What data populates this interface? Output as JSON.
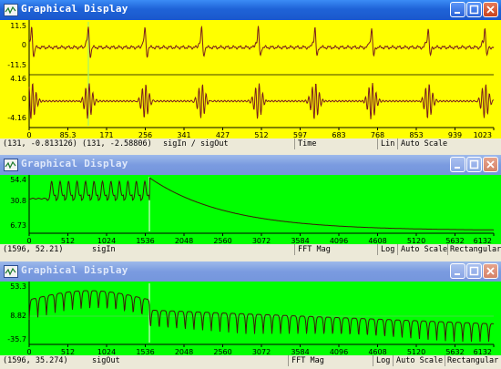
{
  "windows": [
    {
      "title": "Graphical Display",
      "active": true,
      "bg": "#ffff00",
      "trace_color": "#7a1e1e",
      "marker_color": "#a4f26a",
      "panels": [
        {
          "y_ticks": [
            "11.5",
            "0",
            "-11.5"
          ]
        },
        {
          "y_ticks": [
            "4.16",
            "0",
            "-4.16"
          ]
        }
      ],
      "x_ticks": [
        "0",
        "85.3",
        "171",
        "256",
        "341",
        "427",
        "512",
        "597",
        "683",
        "768",
        "853",
        "939",
        "1023"
      ],
      "status": {
        "coord1": "(131, -0.813126)",
        "coord2": "(131, -2.58806)",
        "signal": "sigIn / sigOut",
        "axis": "Time",
        "scale": "Lin",
        "mode": "Auto Scale"
      }
    },
    {
      "title": "Graphical Display",
      "active": false,
      "bg": "#00ff00",
      "trace_color": "#3c1a0a",
      "marker_color": "#d8f8d0",
      "y_ticks": [
        "54.4",
        "30.8",
        "6.73"
      ],
      "x_ticks": [
        "0",
        "512",
        "1024",
        "1536",
        "2048",
        "2560",
        "3072",
        "3584",
        "4096",
        "4608",
        "5120",
        "5632",
        "6132"
      ],
      "status": {
        "coord": "(1596, 52.21)",
        "signal": "sigIn",
        "axis": "FFT Mag",
        "scale": "Log",
        "mode": "Auto Scale",
        "window": "Rectangular"
      }
    },
    {
      "title": "Graphical Display",
      "active": false,
      "bg": "#00ff00",
      "trace_color": "#3c1a0a",
      "marker_color": "#d8f8d0",
      "y_ticks": [
        "53.3",
        "8.82",
        "-35.7"
      ],
      "x_ticks": [
        "0",
        "512",
        "1024",
        "1536",
        "2048",
        "2560",
        "3072",
        "3584",
        "4096",
        "4608",
        "5120",
        "5632",
        "6132"
      ],
      "status": {
        "coord": "(1596, 35.274)",
        "signal": "sigOut",
        "axis": "FFT Mag",
        "scale": "Log",
        "mode": "Auto Scale",
        "window": "Rectangular"
      }
    }
  ]
}
